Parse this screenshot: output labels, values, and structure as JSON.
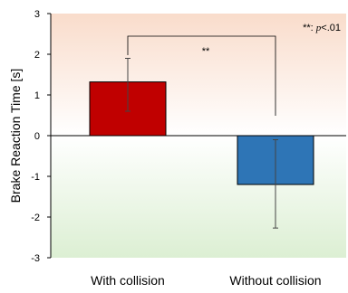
{
  "chart_data": {
    "type": "bar",
    "categories": [
      "With collision",
      "Without collision"
    ],
    "values": [
      1.32,
      -1.2
    ],
    "error_bars": [
      {
        "upper": 1.9,
        "lower": 0.6
      },
      {
        "upper": -0.1,
        "lower": -2.27
      }
    ],
    "colors": [
      "#c00000",
      "#2e75b6"
    ],
    "title": "",
    "xlabel": "",
    "ylabel": "Brake Reaction Time [s]",
    "ylim": [
      -3,
      3
    ],
    "yticks": [
      "3",
      "2",
      "1",
      "0",
      "-1",
      "-2",
      "-3"
    ],
    "grid": false,
    "background": {
      "top": "#f9dccb",
      "bottom": "#dcefd3"
    },
    "significance": {
      "marker": "**",
      "legend_prefix": "**: ",
      "legend_var": "p",
      "legend_rest": "<.01"
    }
  }
}
